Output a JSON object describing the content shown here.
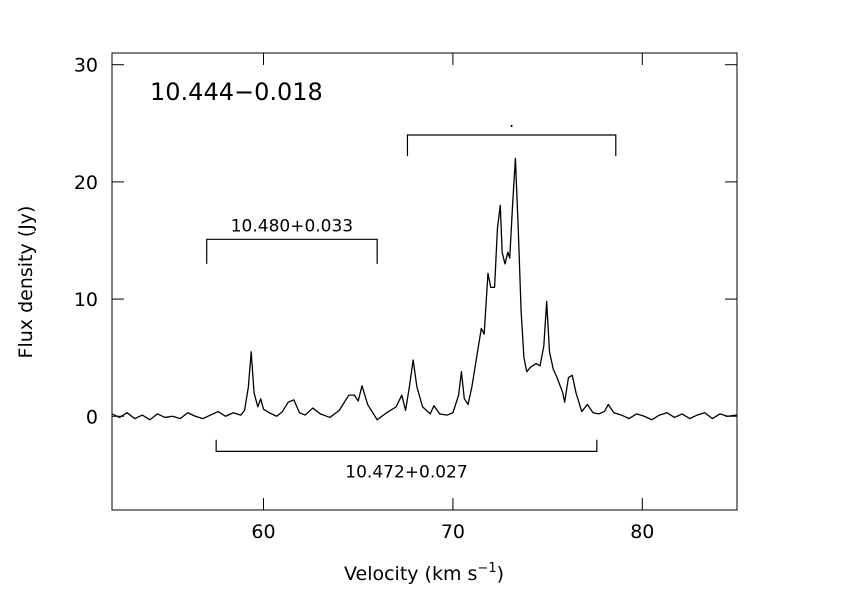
{
  "chart_data": {
    "type": "line",
    "title": "10.444−0.018",
    "xlabel": {
      "text": "Velocity (km s",
      "sup": "−1",
      "tail": ")"
    },
    "ylabel": "Flux density (Jy)",
    "xlim": [
      52,
      85
    ],
    "ylim": [
      -8,
      31
    ],
    "xticks": [
      60,
      70,
      80
    ],
    "yticks": [
      0,
      10,
      20,
      30
    ],
    "color": "#000000",
    "x": [
      52.0,
      52.4,
      52.8,
      53.2,
      53.6,
      54.0,
      54.4,
      54.8,
      55.2,
      55.6,
      56.0,
      56.4,
      56.8,
      57.2,
      57.6,
      58.0,
      58.4,
      58.8,
      59.0,
      59.2,
      59.35,
      59.5,
      59.7,
      59.85,
      60.0,
      60.3,
      60.7,
      61.0,
      61.3,
      61.6,
      61.9,
      62.2,
      62.6,
      63.0,
      63.5,
      64.0,
      64.5,
      64.8,
      65.0,
      65.2,
      65.5,
      66.0,
      66.5,
      67.0,
      67.3,
      67.5,
      67.7,
      67.9,
      68.1,
      68.4,
      68.8,
      69.0,
      69.3,
      69.7,
      70.0,
      70.3,
      70.45,
      70.6,
      70.8,
      71.0,
      71.3,
      71.5,
      71.65,
      71.85,
      72.0,
      72.2,
      72.35,
      72.5,
      72.6,
      72.75,
      72.9,
      73.0,
      73.15,
      73.3,
      73.45,
      73.6,
      73.75,
      73.9,
      74.1,
      74.4,
      74.6,
      74.8,
      74.95,
      75.1,
      75.3,
      75.5,
      75.8,
      75.9,
      76.1,
      76.3,
      76.5,
      76.8,
      77.1,
      77.4,
      77.7,
      78.0,
      78.2,
      78.5,
      78.9,
      79.3,
      79.7,
      80.1,
      80.5,
      80.9,
      81.3,
      81.7,
      82.1,
      82.5,
      82.9,
      83.3,
      83.7,
      84.1,
      84.5,
      85.0
    ],
    "values": [
      0.2,
      -0.1,
      0.3,
      -0.2,
      0.1,
      -0.3,
      0.2,
      -0.1,
      0.0,
      -0.2,
      0.3,
      0.0,
      -0.2,
      0.1,
      0.4,
      0.0,
      0.3,
      0.1,
      0.5,
      2.5,
      5.5,
      2.0,
      0.8,
      1.5,
      0.6,
      0.3,
      0.0,
      0.4,
      1.2,
      1.4,
      0.3,
      0.1,
      0.7,
      0.2,
      -0.1,
      0.5,
      1.8,
      1.8,
      1.3,
      2.6,
      1.0,
      -0.3,
      0.3,
      0.8,
      1.8,
      0.5,
      2.5,
      4.8,
      2.5,
      0.8,
      0.2,
      0.9,
      0.2,
      0.1,
      0.3,
      1.8,
      3.8,
      1.5,
      1.0,
      2.5,
      5.5,
      7.5,
      7.0,
      12.2,
      11.0,
      11.0,
      16.0,
      18.0,
      14.0,
      13.0,
      14.0,
      13.5,
      18.0,
      22.0,
      16.0,
      9.0,
      5.0,
      3.8,
      4.2,
      4.5,
      4.3,
      6.0,
      9.8,
      5.5,
      4.0,
      3.3,
      2.0,
      1.2,
      3.3,
      3.5,
      2.0,
      0.4,
      1.0,
      0.3,
      0.2,
      0.4,
      1.0,
      0.3,
      0.1,
      -0.2,
      0.2,
      0.0,
      -0.3,
      0.1,
      0.3,
      -0.1,
      0.2,
      -0.2,
      0.1,
      0.3,
      -0.2,
      0.2,
      0.0,
      0.1
    ],
    "annotations": [
      {
        "label": "10.480+0.033",
        "x1": 57.0,
        "x2": 66.0,
        "y": 15.1,
        "y_end": 13.0
      },
      {
        "label": ".",
        "x1": 67.6,
        "x2": 78.6,
        "y": 24.0,
        "y_end": 22.2
      },
      {
        "label": "10.472+0.027",
        "x1": 57.5,
        "x2": 77.6,
        "y": -3.0,
        "y_end": -2.0
      }
    ]
  }
}
